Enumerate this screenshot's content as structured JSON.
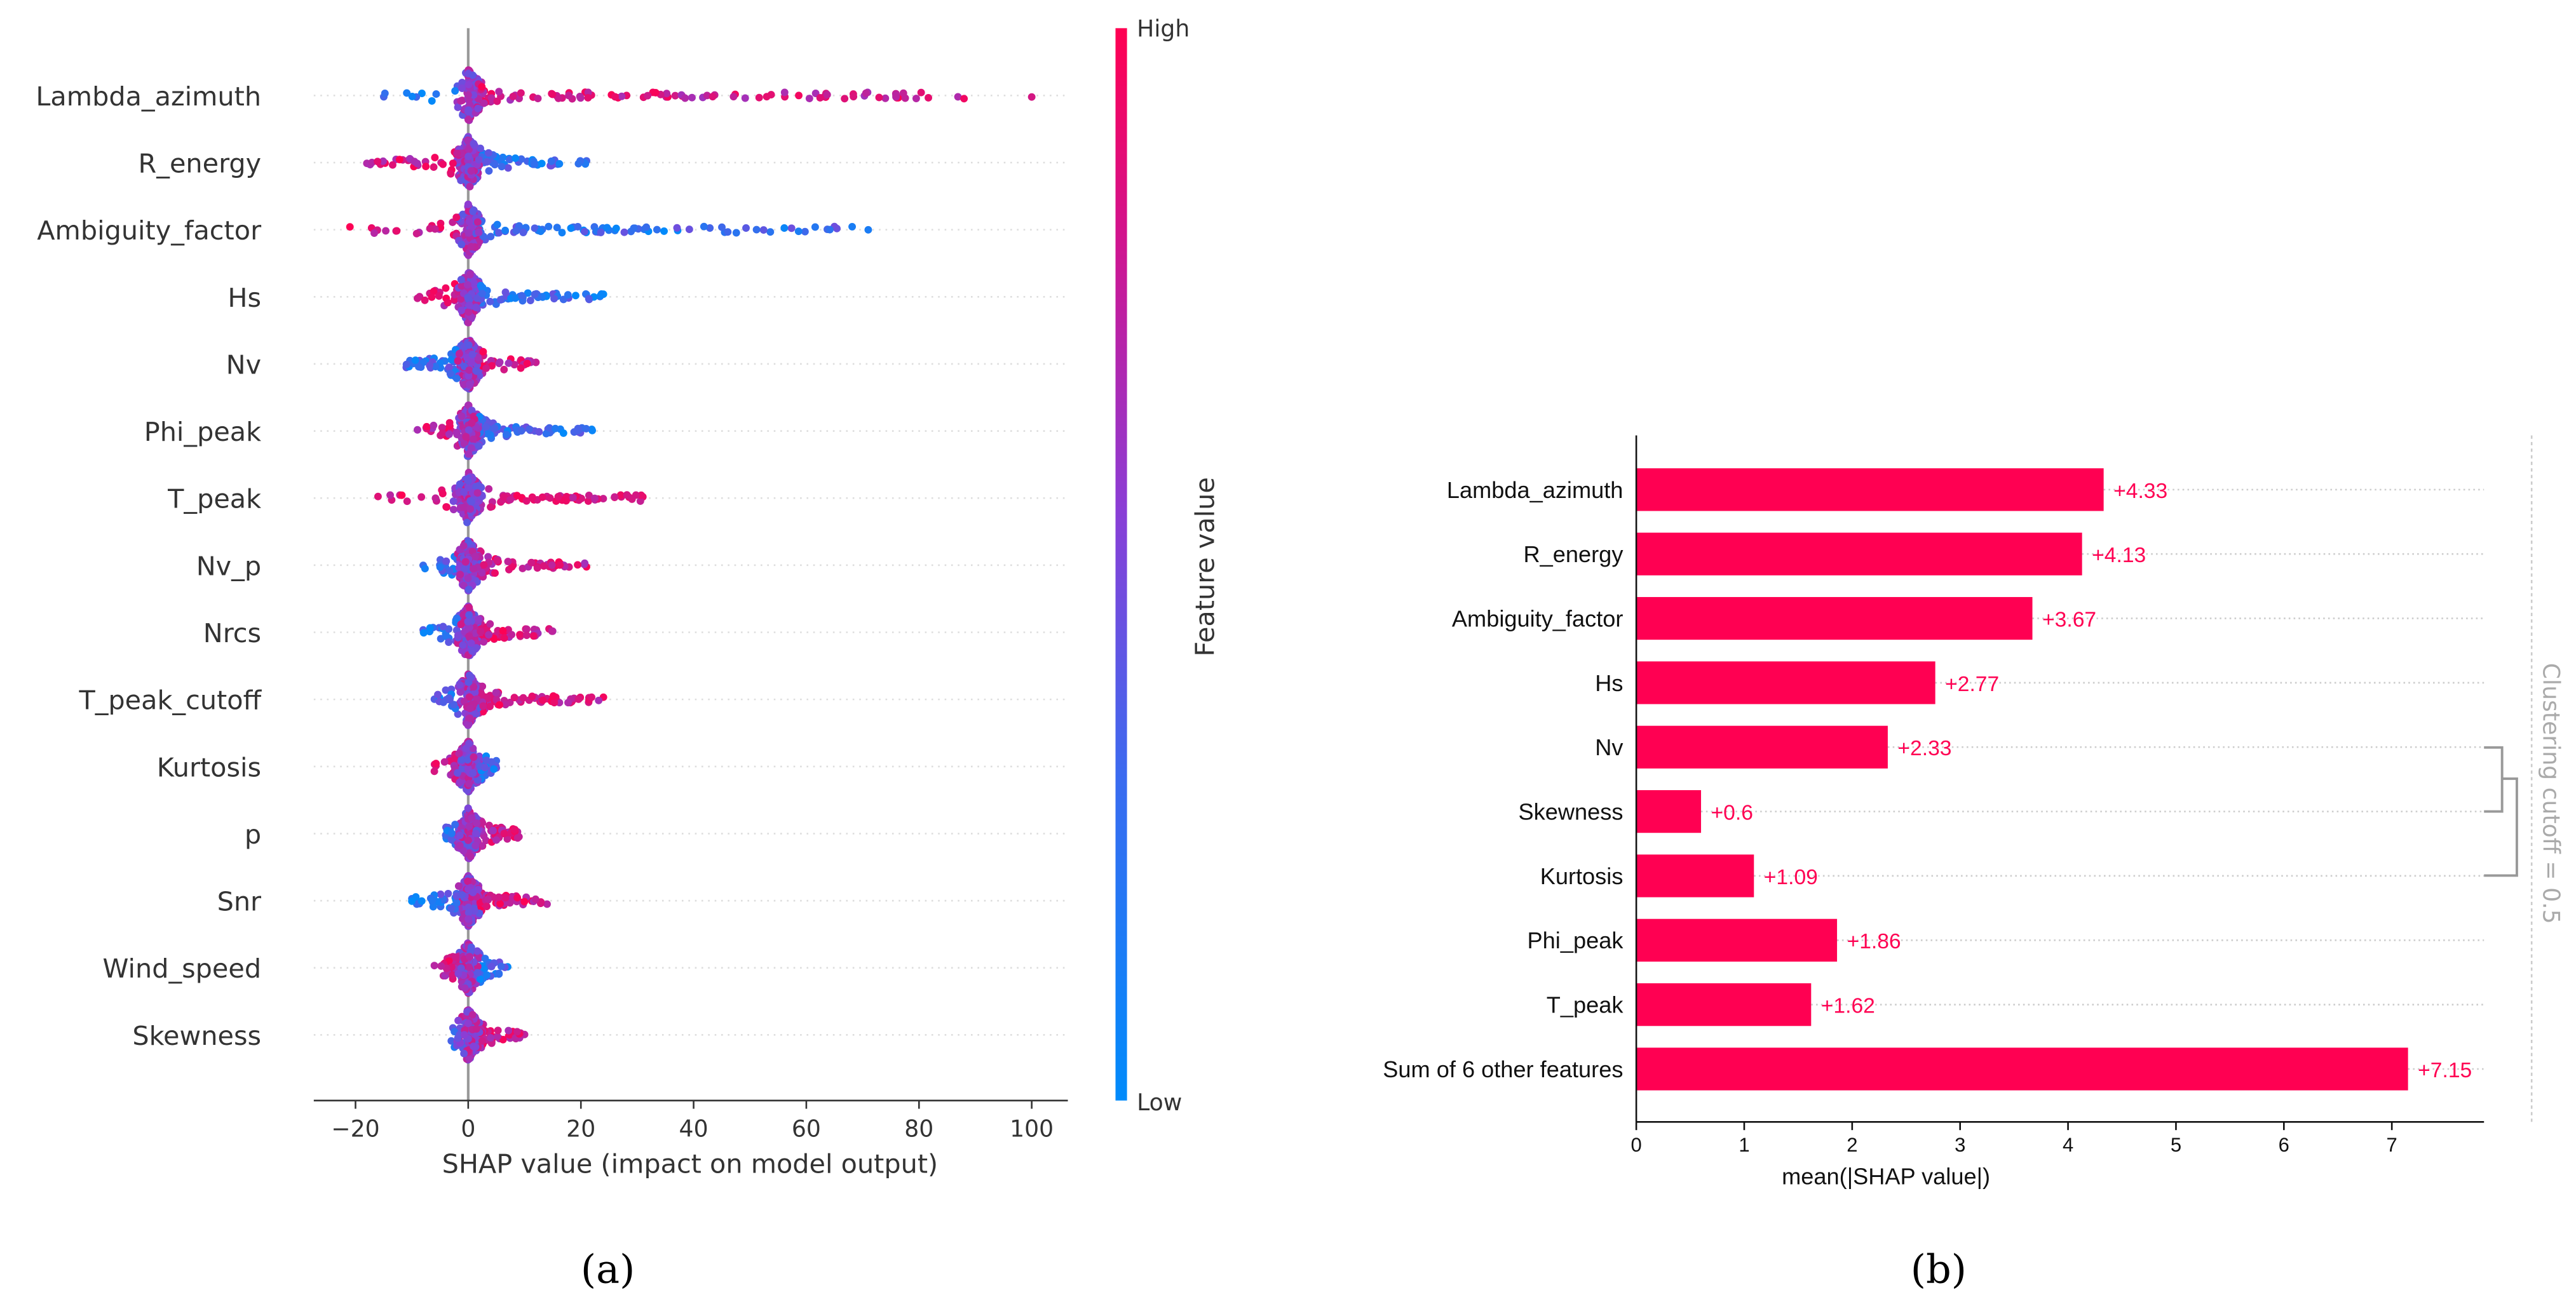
{
  "chart_data": [
    {
      "type": "scatter",
      "subtype": "beeswarm",
      "xlabel": "SHAP value (impact on model output)",
      "xlim": [
        -27,
        106
      ],
      "xticks": [
        -20,
        0,
        20,
        40,
        60,
        80,
        100
      ],
      "tick_labels": [
        "−20",
        "0",
        "20",
        "40",
        "60",
        "80",
        "100"
      ],
      "colorbar": {
        "label": "Feature value",
        "high": "High",
        "low": "Low",
        "high_color": "#ff0052",
        "low_color": "#008bfb"
      },
      "features": [
        {
          "name": "Lambda_azimuth",
          "min": -15,
          "max": 100,
          "high_side": "right"
        },
        {
          "name": "R_energy",
          "min": -18,
          "max": 21,
          "high_side": "left"
        },
        {
          "name": "Ambiguity_factor",
          "min": -21,
          "max": 71,
          "high_side": "left"
        },
        {
          "name": "Hs",
          "min": -9,
          "max": 24,
          "high_side": "left"
        },
        {
          "name": "Nv",
          "min": -11,
          "max": 12,
          "high_side": "right"
        },
        {
          "name": "Phi_peak",
          "min": -9,
          "max": 22,
          "high_side": "left"
        },
        {
          "name": "T_peak",
          "min": -16,
          "max": 31,
          "high_side": "mixed"
        },
        {
          "name": "Nv_p",
          "min": -8,
          "max": 21,
          "high_side": "right"
        },
        {
          "name": "Nrcs",
          "min": -8,
          "max": 15,
          "high_side": "right"
        },
        {
          "name": "T_peak_cutoff",
          "min": -6,
          "max": 24,
          "high_side": "right"
        },
        {
          "name": "Kurtosis",
          "min": -6,
          "max": 5,
          "high_side": "left"
        },
        {
          "name": "p",
          "min": -4,
          "max": 9,
          "high_side": "right"
        },
        {
          "name": "Snr",
          "min": -10,
          "max": 14,
          "high_side": "right"
        },
        {
          "name": "Wind_speed",
          "min": -6,
          "max": 7,
          "high_side": "left"
        },
        {
          "name": "Skewness",
          "min": -3,
          "max": 10,
          "high_side": "right"
        }
      ],
      "caption": "(a)"
    },
    {
      "type": "bar",
      "orientation": "horizontal",
      "xlabel": "mean(|SHAP value|)",
      "xlim": [
        0,
        7.85
      ],
      "xticks": [
        0,
        1,
        2,
        3,
        4,
        5,
        6,
        7
      ],
      "categories": [
        "Lambda_azimuth",
        "R_energy",
        "Ambiguity_factor",
        "Hs",
        "Nv",
        "Skewness",
        "Kurtosis",
        "Phi_peak",
        "T_peak",
        "Sum of 6 other features"
      ],
      "values": [
        4.33,
        4.13,
        3.67,
        2.77,
        2.33,
        0.6,
        1.09,
        1.86,
        1.62,
        7.15
      ],
      "value_labels": [
        "+4.33",
        "+4.13",
        "+3.67",
        "+2.77",
        "+2.33",
        "+0.6",
        "+1.09",
        "+1.86",
        "+1.62",
        "+7.15"
      ],
      "bar_color": "#ff0052",
      "clustering_label": "Clustering cutoff = 0.5",
      "caption": "(b)"
    }
  ]
}
